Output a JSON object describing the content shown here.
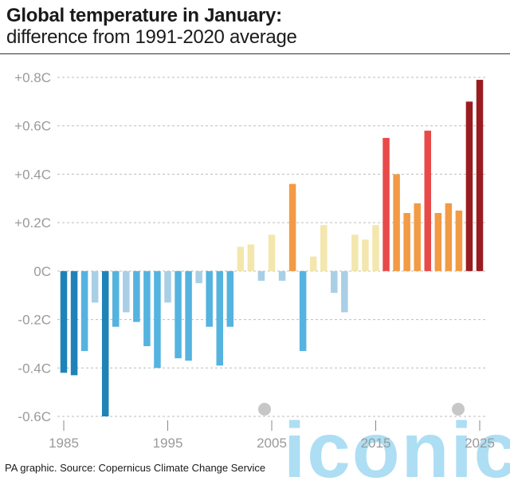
{
  "header": {
    "title": "Global temperature in January:",
    "subtitle": "difference from 1991-2020 average"
  },
  "source": "PA graphic. Source: Copernicus Climate Change Service",
  "watermark": {
    "text": "iconic"
  },
  "colors": {
    "cold_dark": "#1f83b8",
    "cold_mid": "#55b3df",
    "cold_light": "#a9cfe6",
    "warm_light": "#f3e7ad",
    "warm_orange": "#f39a45",
    "hot_red": "#e84a4a",
    "hot_darkred": "#9b1c20",
    "grid": "#bdbdbd",
    "axis_text": "#9a9a9a",
    "watermark": "#9fd9f2"
  },
  "chart_data": {
    "type": "bar",
    "title": "Global temperature in January: difference from 1991-2020 average",
    "xlabel": "",
    "ylabel": "",
    "ylim": [
      -0.6,
      0.8
    ],
    "y_ticks": [
      {
        "value": 0.8,
        "label": "+0.8C"
      },
      {
        "value": 0.6,
        "label": "+0.6C"
      },
      {
        "value": 0.4,
        "label": "+0.4C"
      },
      {
        "value": 0.2,
        "label": "+0.2C"
      },
      {
        "value": 0.0,
        "label": "0C"
      },
      {
        "value": -0.2,
        "label": "-0.2C"
      },
      {
        "value": -0.4,
        "label": "-0.4C"
      },
      {
        "value": -0.6,
        "label": "-0.6C"
      }
    ],
    "x_ticks": [
      {
        "year": 1985,
        "label": "1985"
      },
      {
        "year": 1995,
        "label": "1995"
      },
      {
        "year": 2005,
        "label": "2005"
      },
      {
        "year": 2015,
        "label": "2015"
      },
      {
        "year": 2025,
        "label": "2025"
      }
    ],
    "categories": [
      1985,
      1986,
      1987,
      1988,
      1989,
      1990,
      1991,
      1992,
      1993,
      1994,
      1995,
      1996,
      1997,
      1998,
      1999,
      2000,
      2001,
      2002,
      2003,
      2004,
      2005,
      2006,
      2007,
      2008,
      2009,
      2010,
      2011,
      2012,
      2013,
      2014,
      2015,
      2016,
      2017,
      2018,
      2019,
      2020,
      2021,
      2022,
      2023,
      2024,
      2025
    ],
    "values": [
      -0.42,
      -0.43,
      -0.33,
      -0.13,
      -0.6,
      -0.23,
      -0.17,
      -0.21,
      -0.31,
      -0.4,
      -0.13,
      -0.36,
      -0.37,
      -0.05,
      -0.23,
      -0.39,
      -0.23,
      0.1,
      0.11,
      -0.04,
      0.15,
      -0.04,
      0.36,
      -0.33,
      0.06,
      0.19,
      -0.09,
      -0.17,
      0.15,
      0.13,
      0.19,
      0.55,
      0.4,
      0.24,
      0.28,
      0.58,
      0.24,
      0.28,
      0.25,
      0.7,
      0.79
    ],
    "bar_colors": [
      "cold_dark",
      "cold_dark",
      "cold_mid",
      "cold_light",
      "cold_dark",
      "cold_mid",
      "cold_light",
      "cold_mid",
      "cold_mid",
      "cold_mid",
      "cold_light",
      "cold_mid",
      "cold_mid",
      "cold_light",
      "cold_mid",
      "cold_mid",
      "cold_mid",
      "warm_light",
      "warm_light",
      "cold_light",
      "warm_light",
      "cold_light",
      "warm_orange",
      "cold_mid",
      "warm_light",
      "warm_light",
      "cold_light",
      "cold_light",
      "warm_light",
      "warm_light",
      "warm_light",
      "hot_red",
      "warm_orange",
      "warm_orange",
      "warm_orange",
      "hot_red",
      "warm_orange",
      "warm_orange",
      "warm_orange",
      "hot_darkred",
      "hot_darkred"
    ]
  }
}
